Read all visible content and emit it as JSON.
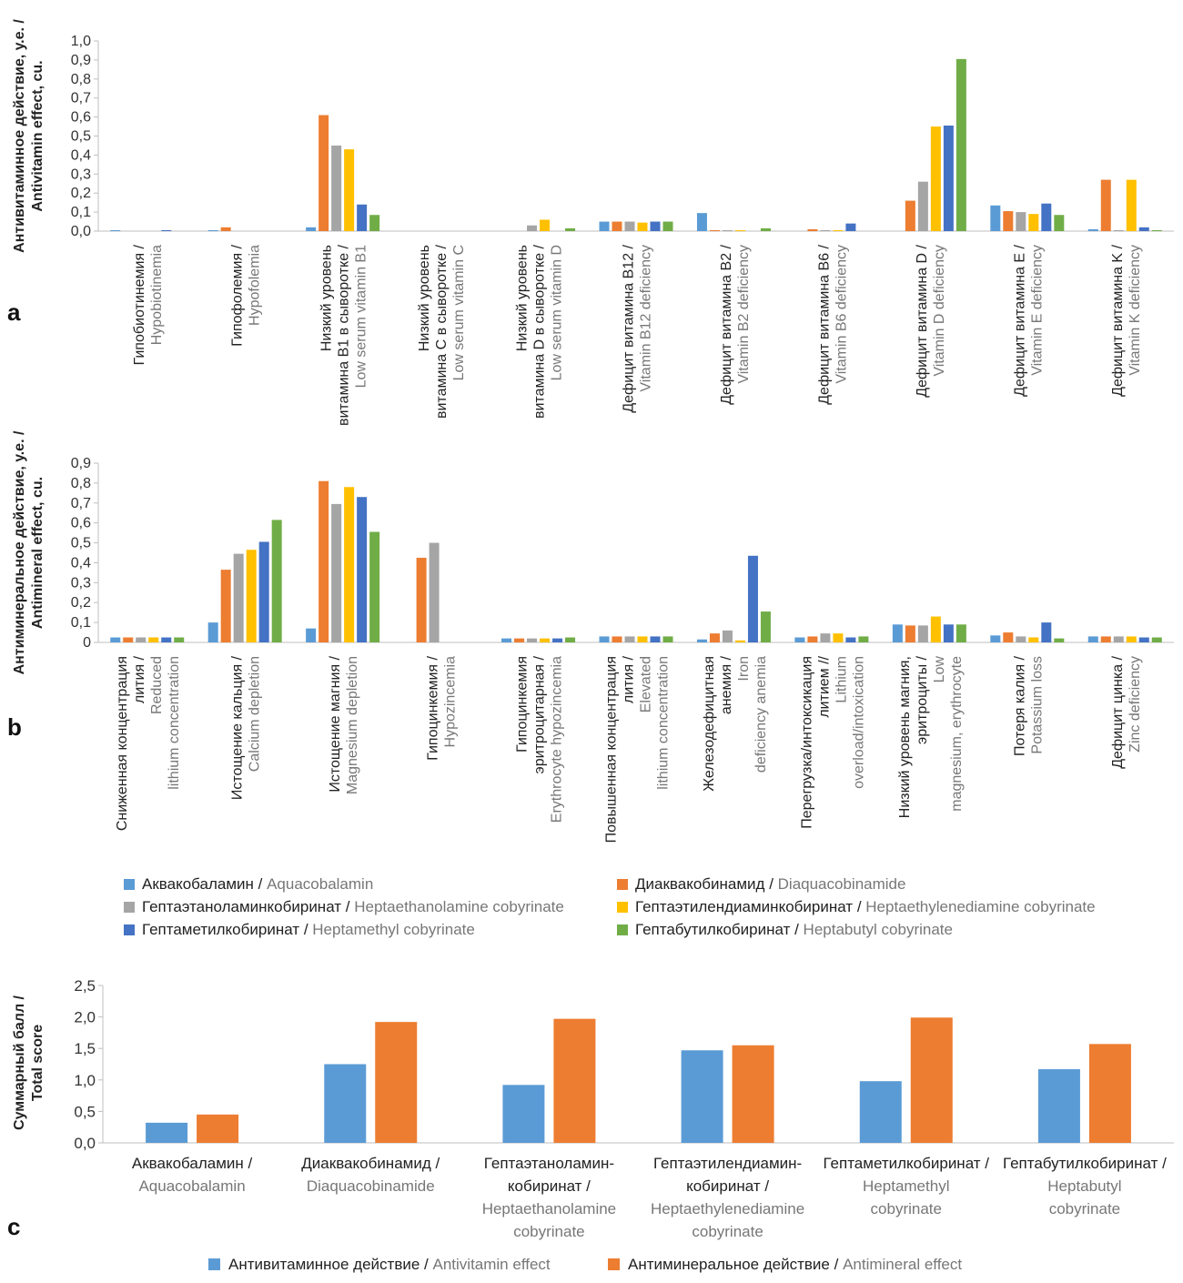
{
  "colors": {
    "aquacobalamin": "#5B9BD5",
    "diaquacobinamide": "#ED7D31",
    "heptaethanolamine": "#A5A5A5",
    "heptaethylenediamine": "#FFC000",
    "heptamethyl": "#4472C4",
    "heptabutyl": "#70AD47",
    "text_ru": "#222222",
    "text_en": "#777777",
    "axis": "#bfbfbf"
  },
  "chart_data": [
    {
      "panel_label": "a",
      "type": "bar",
      "ylabel_ru": "Антивитаминное действие, у.е. /",
      "ylabel_en": "Antivitamin effect, cu.",
      "ylim": [
        0,
        1.0
      ],
      "yticks": [
        "0,0",
        "0,1",
        "0,2",
        "0,3",
        "0,4",
        "0,5",
        "0,6",
        "0,7",
        "0,8",
        "0,9",
        "1,0"
      ],
      "categories": [
        {
          "ru": [
            "Гипобиотинемия /"
          ],
          "en": [
            "Hypobiotinemia"
          ]
        },
        {
          "ru": [
            "Гипофолемия /"
          ],
          "en": [
            "Hypofolemia"
          ]
        },
        {
          "ru": [
            "Низкий уровень",
            "витамина B1 в сыворотке /"
          ],
          "en": [
            "Low serum vitamin B1"
          ]
        },
        {
          "ru": [
            "Низкий уровень",
            "витамина C в сыворотке /"
          ],
          "en": [
            "Low serum vitamin C"
          ]
        },
        {
          "ru": [
            "Низкий уровень",
            "витамина D в сыворотке /"
          ],
          "en": [
            "Low serum vitamin D"
          ]
        },
        {
          "ru": [
            "Дефицит витамина B12 /"
          ],
          "en": [
            "Vitamin B12 deficiency"
          ]
        },
        {
          "ru": [
            "Дефицит витамина B2 /"
          ],
          "en": [
            "Vitamin B2 deficiency"
          ]
        },
        {
          "ru": [
            "Дефицит витамина B6 /"
          ],
          "en": [
            "Vitamin B6 deficiency"
          ]
        },
        {
          "ru": [
            "Дефицит витамина D /"
          ],
          "en": [
            "Vitamin D deficiency"
          ]
        },
        {
          "ru": [
            "Дефицит витамина E /"
          ],
          "en": [
            "Vitamin E deficiency"
          ]
        },
        {
          "ru": [
            "Дефицит витамина K /"
          ],
          "en": [
            "Vitamin K deficiency"
          ]
        }
      ],
      "series": [
        {
          "key": "aquacobalamin",
          "values": [
            0.005,
            0.005,
            0.02,
            0,
            0,
            0.05,
            0.095,
            0,
            0,
            0.135,
            0.01
          ]
        },
        {
          "key": "diaquacobinamide",
          "values": [
            0,
            0.02,
            0.61,
            0,
            0,
            0.05,
            0.005,
            0.01,
            0.16,
            0.105,
            0.27
          ]
        },
        {
          "key": "heptaethanolamine",
          "values": [
            0,
            0,
            0.45,
            0,
            0.03,
            0.05,
            0.005,
            0.005,
            0.26,
            0.1,
            0.005
          ]
        },
        {
          "key": "heptaethylenediamine",
          "values": [
            0,
            0,
            0.43,
            0,
            0.06,
            0.045,
            0.005,
            0.005,
            0.55,
            0.09,
            0.27
          ]
        },
        {
          "key": "heptamethyl",
          "values": [
            0.005,
            0,
            0.14,
            0,
            0,
            0.05,
            0,
            0.04,
            0.555,
            0.145,
            0.02
          ]
        },
        {
          "key": "heptabutyl",
          "values": [
            0,
            0,
            0.085,
            0,
            0.015,
            0.05,
            0.015,
            0,
            0.905,
            0.085,
            0.005
          ]
        }
      ]
    },
    {
      "panel_label": "b",
      "type": "bar",
      "ylabel_ru": "Антиминеральное действие, у.е. /",
      "ylabel_en": "Antimineral effect, cu.",
      "ylim": [
        0,
        0.9
      ],
      "yticks": [
        "0",
        "0,1",
        "0,2",
        "0,3",
        "0,4",
        "0,5",
        "0,6",
        "0,7",
        "0,8",
        "0,9"
      ],
      "categories": [
        {
          "ru": [
            "Сниженная концентрация",
            "лития /"
          ],
          "en": [
            "Reduced",
            "lithium concentration"
          ]
        },
        {
          "ru": [
            "Истощение кальция /"
          ],
          "en": [
            "Calcium depletion"
          ]
        },
        {
          "ru": [
            "Истощение магния /"
          ],
          "en": [
            "Magnesium depletion"
          ]
        },
        {
          "ru": [
            "Гипоцинкемия /"
          ],
          "en": [
            "Hypozincemia"
          ]
        },
        {
          "ru": [
            "Гипоцинкемия",
            "эритроцитарная /"
          ],
          "en": [
            "Erythrocyte hypozincemia"
          ]
        },
        {
          "ru": [
            "Повышенная концентрация",
            "лития /"
          ],
          "en": [
            "Elevated",
            "lithium concentration"
          ]
        },
        {
          "ru": [
            "Железодефицитная",
            "анемия /"
          ],
          "en": [
            "Iron",
            "deficiency anemia"
          ]
        },
        {
          "ru": [
            "Перегрузка/интоксикация",
            "литием //"
          ],
          "en": [
            "Lithium",
            "overload/intoxication"
          ]
        },
        {
          "ru": [
            "Низкий уровень магния,",
            "эритроциты /"
          ],
          "en": [
            "Low",
            "magnesium, erythrocyte"
          ]
        },
        {
          "ru": [
            "Потеря калия /"
          ],
          "en": [
            "Potassium loss"
          ]
        },
        {
          "ru": [
            "Дефицит цинка /"
          ],
          "en": [
            "Zinc deficiency"
          ]
        }
      ],
      "series": [
        {
          "key": "aquacobalamin",
          "values": [
            0.025,
            0.1,
            0.07,
            0,
            0.02,
            0.03,
            0.015,
            0.025,
            0.09,
            0.035,
            0.03
          ]
        },
        {
          "key": "diaquacobinamide",
          "values": [
            0.025,
            0.365,
            0.81,
            0.425,
            0.02,
            0.03,
            0.045,
            0.03,
            0.085,
            0.05,
            0.03
          ]
        },
        {
          "key": "heptaethanolamine",
          "values": [
            0.025,
            0.445,
            0.695,
            0.5,
            0.02,
            0.03,
            0.06,
            0.045,
            0.085,
            0.03,
            0.03
          ]
        },
        {
          "key": "heptaethylenediamine",
          "values": [
            0.025,
            0.465,
            0.78,
            0,
            0.02,
            0.03,
            0.01,
            0.045,
            0.13,
            0.025,
            0.03
          ]
        },
        {
          "key": "heptamethyl",
          "values": [
            0.025,
            0.505,
            0.73,
            0,
            0.02,
            0.03,
            0.435,
            0.025,
            0.09,
            0.1,
            0.025
          ]
        },
        {
          "key": "heptabutyl",
          "values": [
            0.025,
            0.615,
            0.555,
            0,
            0.025,
            0.03,
            0.155,
            0.03,
            0.09,
            0.02,
            0.025
          ]
        }
      ]
    },
    {
      "panel_label": "c",
      "type": "bar",
      "ylabel_ru": "Суммарный балл /",
      "ylabel_en": "Total score",
      "ylim": [
        0,
        2.5
      ],
      "yticks": [
        "0,0",
        "0,5",
        "1,0",
        "1,5",
        "2,0",
        "2,5"
      ],
      "categories": [
        [
          "Аквакобаламин /",
          "Aquacobalamin"
        ],
        [
          "Диаквакобинамид /",
          "Diaquacobinamide"
        ],
        [
          "Гептаэтаноламин-",
          "кобиринат /",
          "Heptaethanolamine",
          "cobyrinate"
        ],
        [
          "Гептаэтилендиамин-",
          "кобиринат /",
          "Heptaethylenediamine",
          "cobyrinate"
        ],
        [
          "Гептаметилкобиринат /",
          "Heptamethyl",
          "cobyrinate"
        ],
        [
          "Гептабутилкобиринат /",
          "Heptabutyl",
          "cobyrinate"
        ]
      ],
      "series": [
        {
          "name_ru": "Антивитаминное действие",
          "name_en": "Antivitamin effect",
          "key": "aquacobalamin",
          "values": [
            0.32,
            1.25,
            0.92,
            1.47,
            0.98,
            1.17
          ]
        },
        {
          "name_ru": "Антиминеральное действие",
          "name_en": "Antimineral effect",
          "key": "diaquacobinamide",
          "values": [
            0.45,
            1.92,
            1.97,
            1.55,
            1.99,
            1.57
          ]
        }
      ]
    }
  ],
  "legend_ab": [
    {
      "key": "aquacobalamin",
      "ru": "Аквакобаламин",
      "en": "Aquacobalamin"
    },
    {
      "key": "diaquacobinamide",
      "ru": "Диаквакобинамид",
      "en": "Diaquacobinamide"
    },
    {
      "key": "heptaethanolamine",
      "ru": "Гептаэтаноламинкобиринат",
      "en": "Heptaethanolamine cobyrinate"
    },
    {
      "key": "heptaethylenediamine",
      "ru": "Гептаэтилендиаминкобиринат",
      "en": "Heptaethylenediamine cobyrinate"
    },
    {
      "key": "heptamethyl",
      "ru": "Гептаметилкобиринат",
      "en": "Heptamethyl cobyrinate"
    },
    {
      "key": "heptabutyl",
      "ru": "Гептабутилкобиринат",
      "en": "Heptabutyl cobyrinate"
    }
  ]
}
